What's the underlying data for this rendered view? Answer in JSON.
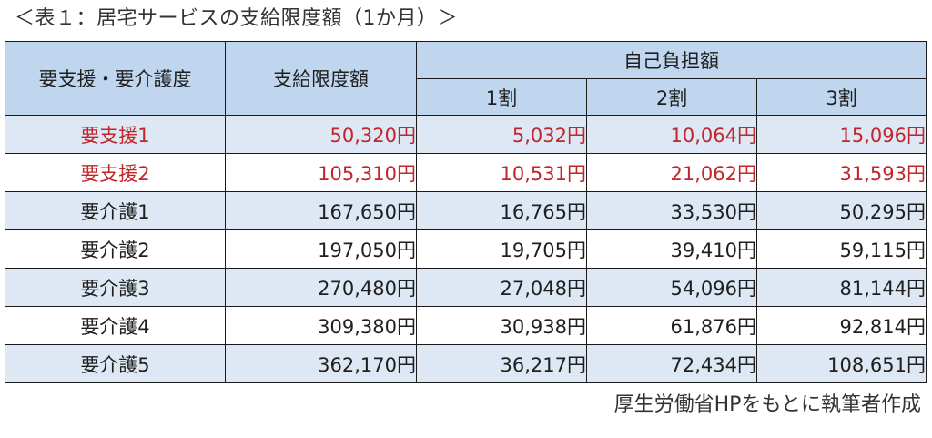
{
  "caption": "＜表１：居宅サービスの支給限度額（1か月）＞",
  "header": {
    "col_level": "要支援・要介護度",
    "col_limit": "支給限度額",
    "col_copay": "自己負担額",
    "sub_1": "1割",
    "sub_2": "2割",
    "sub_3": "3割"
  },
  "rows": [
    {
      "level": "要支援1",
      "limit": "50,320円",
      "pay1": "5,032円",
      "pay2": "10,064円",
      "pay3": "15,096円"
    },
    {
      "level": "要支援2",
      "limit": "105,310円",
      "pay1": "10,531円",
      "pay2": "21,062円",
      "pay3": "31,593円"
    },
    {
      "level": "要介護1",
      "limit": "167,650円",
      "pay1": "16,765円",
      "pay2": "33,530円",
      "pay3": "50,295円"
    },
    {
      "level": "要介護2",
      "limit": "197,050円",
      "pay1": "19,705円",
      "pay2": "39,410円",
      "pay3": "59,115円"
    },
    {
      "level": "要介護3",
      "limit": "270,480円",
      "pay1": "27,048円",
      "pay2": "54,096円",
      "pay3": "81,144円"
    },
    {
      "level": "要介護4",
      "limit": "309,380円",
      "pay1": "30,938円",
      "pay2": "61,876円",
      "pay3": "92,814円"
    },
    {
      "level": "要介護5",
      "limit": "362,170円",
      "pay1": "36,217円",
      "pay2": "72,434円",
      "pay3": "108,651円"
    }
  ],
  "source": "厚生労働省HPをもとに執筆者作成",
  "colors": {
    "header_bg": "#bfd6ee",
    "row_tint": "#dde8f4",
    "highlight_text": "#c0262b"
  }
}
